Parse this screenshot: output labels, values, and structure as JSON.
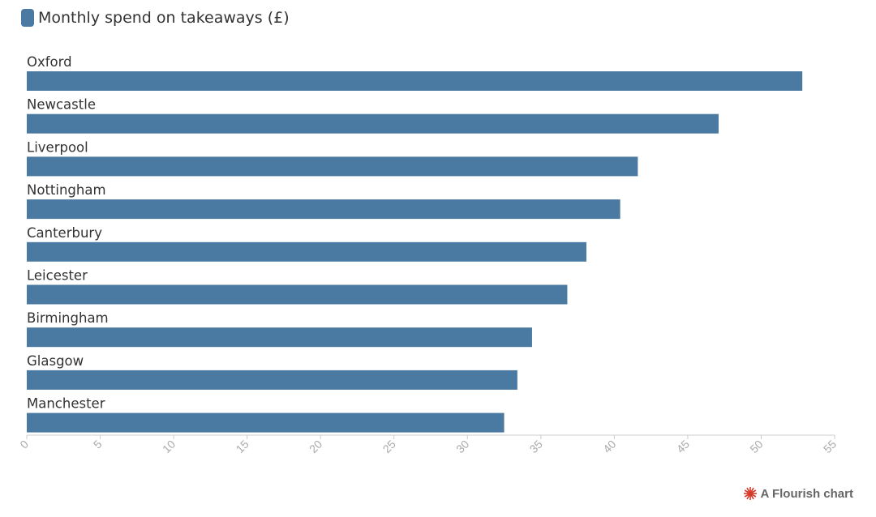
{
  "legend": {
    "label": "Monthly spend on takeaways (£)"
  },
  "credit": {
    "text": "A Flourish chart"
  },
  "colors": {
    "bar": "#4a79a1",
    "axis": "#cccccc",
    "tick_label": "#aaaaaa",
    "category_label": "#333333",
    "credit_icon": "#d63a2b"
  },
  "chart_data": {
    "type": "bar",
    "orientation": "horizontal",
    "categories": [
      "Oxford",
      "Newcastle",
      "Liverpool",
      "Nottingham",
      "Canterbury",
      "Leicester",
      "Birmingham",
      "Glasgow",
      "Manchester"
    ],
    "series": [
      {
        "name": "Monthly spend on takeaways (£)",
        "values": [
          52.8,
          47.1,
          41.6,
          40.4,
          38.1,
          36.8,
          34.4,
          33.4,
          32.5
        ]
      }
    ],
    "xlim": [
      0,
      55
    ],
    "xticks": [
      "0",
      "5",
      "10",
      "15",
      "20",
      "25",
      "30",
      "35",
      "40",
      "45",
      "50",
      "55"
    ],
    "xlabel": "",
    "ylabel": "",
    "grid": false,
    "legend_position": "top-left"
  }
}
